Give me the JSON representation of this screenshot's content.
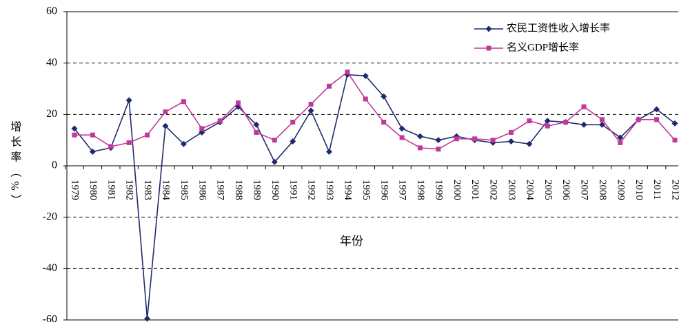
{
  "chart_data": {
    "type": "line",
    "x_label": "年份",
    "y_label": "增长率（%）",
    "categories": [
      "1979",
      "1980",
      "1981",
      "1982",
      "1983",
      "1984",
      "1985",
      "1986",
      "1987",
      "1988",
      "1989",
      "1990",
      "1991",
      "1992",
      "1993",
      "1994",
      "1995",
      "1996",
      "1997",
      "1998",
      "1999",
      "2000",
      "2001",
      "2002",
      "2003",
      "2004",
      "2005",
      "2006",
      "2007",
      "2008",
      "2009",
      "2010",
      "2011",
      "2012"
    ],
    "series": [
      {
        "name": "农民工资性收入增长率",
        "color": "#1f2a6e",
        "marker": "diamond",
        "values": [
          14.5,
          5.5,
          7,
          25.5,
          -59.5,
          15.5,
          8.5,
          13,
          17,
          23,
          16,
          1.5,
          9.5,
          21.5,
          5.5,
          35.5,
          35,
          27,
          14.5,
          11.5,
          10,
          11.5,
          10,
          9,
          9.5,
          8.5,
          17.5,
          17,
          16,
          16,
          11,
          18,
          22,
          16.5
        ]
      },
      {
        "name": "名义GDP增长率",
        "color": "#c0399a",
        "marker": "square",
        "values": [
          12,
          12,
          7.5,
          9,
          12,
          21,
          25,
          14.5,
          17.5,
          24.5,
          13,
          10,
          17,
          24,
          31,
          36.5,
          26,
          17,
          11,
          7,
          6.5,
          10.5,
          10.5,
          10,
          13,
          17.5,
          15.5,
          17,
          23,
          18,
          9,
          18,
          18,
          10
        ]
      }
    ],
    "ylim": [
      -60,
      60
    ],
    "yticks": [
      -60,
      -40,
      -20,
      0,
      20,
      40,
      60
    ],
    "grid": true,
    "legend": "top-right"
  }
}
